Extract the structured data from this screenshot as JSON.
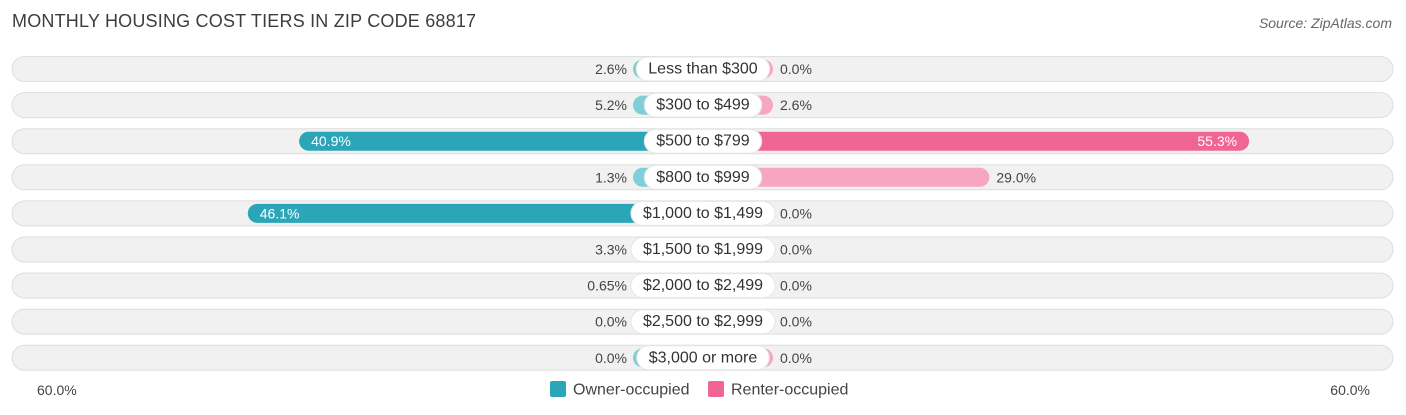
{
  "title": "MONTHLY HOUSING COST TIERS IN ZIP CODE 68817",
  "source": "Source: ZipAtlas.com",
  "colors": {
    "owner_dark": "#2ba6b8",
    "owner_light": "#7ecfd7",
    "renter_dark": "#f06591",
    "renter_light": "#f7a6bf",
    "row_bg": "#f1f1f1",
    "row_border": "#dedede",
    "text": "#444444"
  },
  "chart_data": {
    "type": "bar",
    "orientation": "horizontal-diverging",
    "categories": [
      "Less than $300",
      "$300 to $499",
      "$500 to $799",
      "$800 to $999",
      "$1,000 to $1,499",
      "$1,500 to $1,999",
      "$2,000 to $2,499",
      "$2,500 to $2,999",
      "$3,000 or more"
    ],
    "series": [
      {
        "name": "Owner-occupied",
        "side": "left",
        "values": [
          2.6,
          5.2,
          40.9,
          1.3,
          46.1,
          3.3,
          0.65,
          0.0,
          0.0
        ],
        "labels": [
          "2.6%",
          "5.2%",
          "40.9%",
          "1.3%",
          "46.1%",
          "3.3%",
          "0.65%",
          "0.0%",
          "0.0%"
        ]
      },
      {
        "name": "Renter-occupied",
        "side": "right",
        "values": [
          0.0,
          2.6,
          55.3,
          29.0,
          0.0,
          0.0,
          0.0,
          0.0,
          0.0
        ],
        "labels": [
          "0.0%",
          "2.6%",
          "55.3%",
          "29.0%",
          "0.0%",
          "0.0%",
          "0.0%",
          "0.0%",
          "0.0%"
        ]
      }
    ],
    "xlim": [
      -60,
      60
    ],
    "axis_labels": {
      "left": "60.0%",
      "right": "60.0%"
    },
    "legend_position": "bottom-center"
  }
}
